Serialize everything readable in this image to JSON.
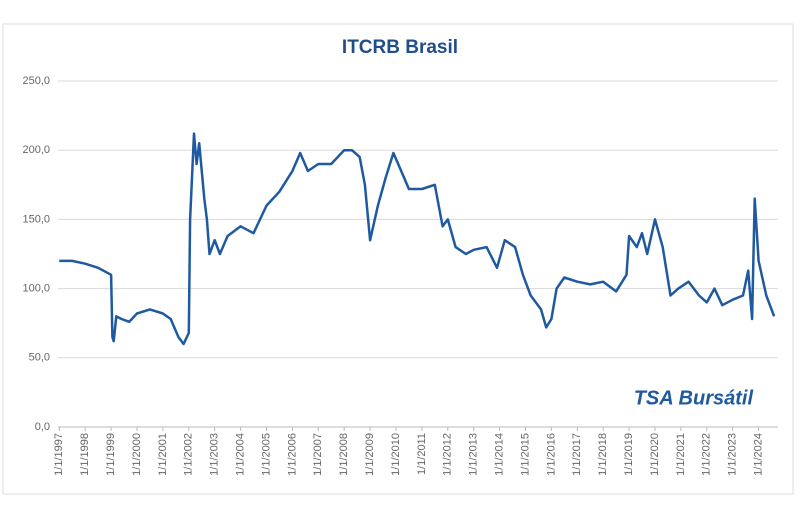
{
  "chart_data": {
    "type": "line",
    "title": "ITCRB Brasil",
    "xlim": [
      1996.95,
      2024.75
    ],
    "xticks": [
      {
        "value": 1997,
        "label": "1/1/1997"
      },
      {
        "value": 1998,
        "label": "1/1/1998"
      },
      {
        "value": 1999,
        "label": "1/1/1999"
      },
      {
        "value": 2000,
        "label": "1/1/2000"
      },
      {
        "value": 2001,
        "label": "1/1/2001"
      },
      {
        "value": 2002,
        "label": "1/1/2002"
      },
      {
        "value": 2003,
        "label": "1/1/2003"
      },
      {
        "value": 2004,
        "label": "1/1/2004"
      },
      {
        "value": 2005,
        "label": "1/1/2005"
      },
      {
        "value": 2006,
        "label": "1/1/2006"
      },
      {
        "value": 2007,
        "label": "1/1/2007"
      },
      {
        "value": 2008,
        "label": "1/1/2008"
      },
      {
        "value": 2009,
        "label": "1/1/2009"
      },
      {
        "value": 2010,
        "label": "1/1/2010"
      },
      {
        "value": 2011,
        "label": "1/1/2011"
      },
      {
        "value": 2012,
        "label": "1/1/2012"
      },
      {
        "value": 2013,
        "label": "1/1/2013"
      },
      {
        "value": 2014,
        "label": "1/1/2014"
      },
      {
        "value": 2015,
        "label": "1/1/2015"
      },
      {
        "value": 2016,
        "label": "1/1/2016"
      },
      {
        "value": 2017,
        "label": "1/1/2017"
      },
      {
        "value": 2018,
        "label": "1/1/2018"
      },
      {
        "value": 2019,
        "label": "1/1/2019"
      },
      {
        "value": 2020,
        "label": "1/1/2020"
      },
      {
        "value": 2021,
        "label": "1/1/2021"
      },
      {
        "value": 2022,
        "label": "1/1/2022"
      },
      {
        "value": 2023,
        "label": "1/1/2023"
      },
      {
        "value": 2024,
        "label": "1/1/2024"
      }
    ],
    "ylim": [
      0,
      250
    ],
    "yticks": [
      {
        "value": 0,
        "label": "0,0"
      },
      {
        "value": 50,
        "label": "50,0"
      },
      {
        "value": 100,
        "label": "100,0"
      },
      {
        "value": 150,
        "label": "150,0"
      },
      {
        "value": 200,
        "label": "200,0"
      },
      {
        "value": 250,
        "label": "250,0"
      }
    ],
    "grid": true,
    "color": "#1f5aa0",
    "x": [
      1997.0,
      1997.5,
      1998.0,
      1998.5,
      1999.0,
      1999.05,
      1999.1,
      1999.2,
      1999.4,
      1999.7,
      2000.0,
      2000.5,
      2001.0,
      2001.3,
      2001.6,
      2001.8,
      2002.0,
      2002.05,
      2002.2,
      2002.3,
      2002.4,
      2002.6,
      2002.7,
      2002.8,
      2003.0,
      2003.2,
      2003.5,
      2004.0,
      2004.5,
      2005.0,
      2005.5,
      2006.0,
      2006.3,
      2006.6,
      2007.0,
      2007.5,
      2008.0,
      2008.3,
      2008.6,
      2008.8,
      2009.0,
      2009.3,
      2009.6,
      2009.9,
      2010.2,
      2010.5,
      2011.0,
      2011.5,
      2011.8,
      2012.0,
      2012.3,
      2012.7,
      2013.0,
      2013.5,
      2013.9,
      2014.2,
      2014.6,
      2014.9,
      2015.2,
      2015.6,
      2015.8,
      2016.0,
      2016.2,
      2016.5,
      2017.0,
      2017.5,
      2018.0,
      2018.5,
      2018.9,
      2019.0,
      2019.3,
      2019.5,
      2019.7,
      2020.0,
      2020.3,
      2020.6,
      2020.9,
      2021.3,
      2021.7,
      2022.0,
      2022.3,
      2022.6,
      2023.0,
      2023.4,
      2023.6,
      2023.75,
      2023.85,
      2024.0,
      2024.3,
      2024.6
    ],
    "values": [
      120,
      120,
      118,
      115,
      110,
      65,
      62,
      80,
      78,
      76,
      82,
      85,
      82,
      78,
      65,
      60,
      68,
      150,
      212,
      190,
      205,
      165,
      150,
      125,
      135,
      125,
      138,
      145,
      140,
      160,
      170,
      185,
      198,
      185,
      190,
      190,
      200,
      200,
      195,
      175,
      135,
      160,
      180,
      198,
      185,
      172,
      172,
      175,
      145,
      150,
      130,
      125,
      128,
      130,
      115,
      135,
      130,
      110,
      95,
      85,
      72,
      78,
      100,
      108,
      105,
      103,
      105,
      98,
      110,
      138,
      130,
      140,
      125,
      150,
      130,
      95,
      100,
      105,
      95,
      90,
      100,
      88,
      92,
      95,
      113,
      78,
      165,
      120,
      95,
      80
    ],
    "logo": "TSA Bursátil"
  }
}
